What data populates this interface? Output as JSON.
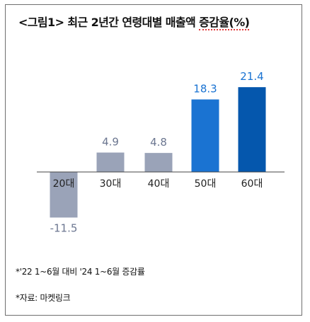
{
  "title": {
    "prefix": "<그림1>",
    "main": "최근 2년간 연령대별 매출액 ",
    "underlined": "증감율(%)"
  },
  "notes": {
    "period": "*'22 1~6월 대비 '24 1~6월 증감률",
    "source": "*자료: 마켓링크"
  },
  "chart_data": {
    "type": "bar",
    "title": "최근 2년간 연령대별 매출액 증감율(%)",
    "categories": [
      "20대",
      "30대",
      "40대",
      "50대",
      "60대"
    ],
    "values": [
      -11.5,
      4.9,
      4.8,
      18.3,
      21.4
    ],
    "value_labels": [
      "-11.5",
      "4.9",
      "4.8",
      "18.3",
      "21.4"
    ],
    "xlabel": "",
    "ylabel": "",
    "ylim": [
      -11.5,
      21.4
    ],
    "grid": false,
    "legend": "none",
    "colors": {
      "20대": "#9aa3b8",
      "30대": "#9aa3b8",
      "40대": "#9aa3b8",
      "50대": "#1a73d2",
      "60대": "#0557ad"
    },
    "label_colors": {
      "negative_positive_gray": "#6b7690",
      "highlight": "#1a73d2"
    }
  }
}
